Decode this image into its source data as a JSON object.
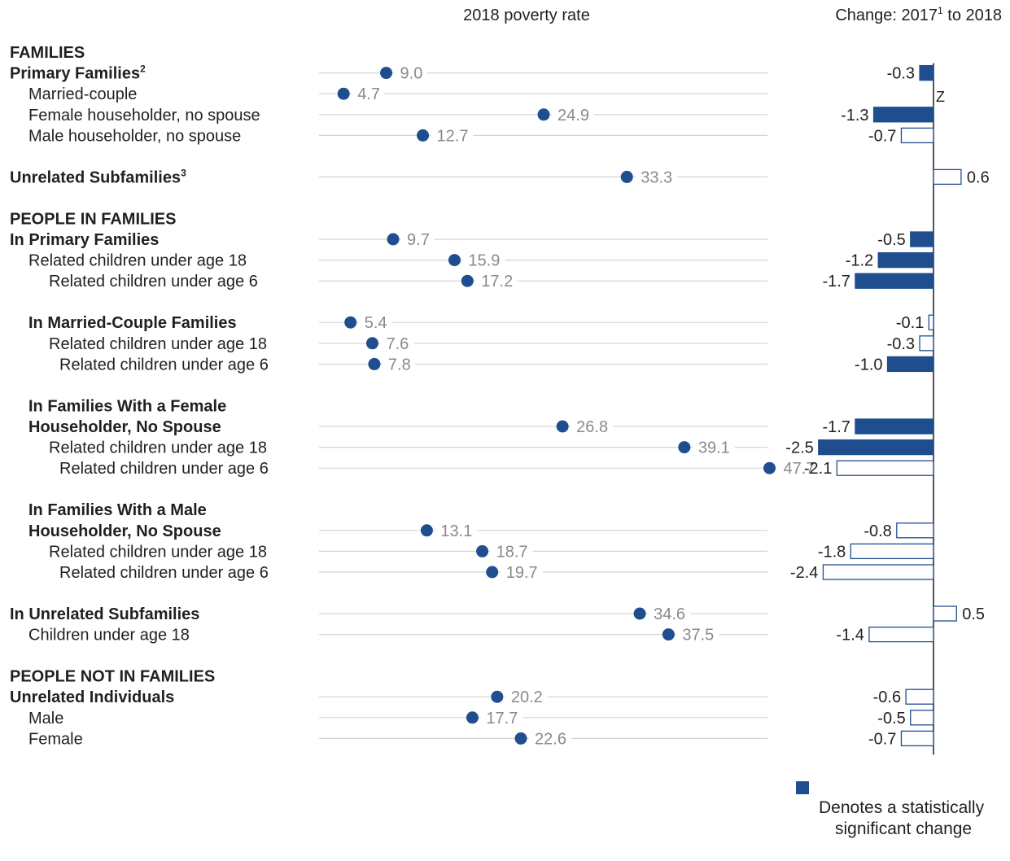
{
  "chart_data": {
    "type": "dot-and-bar",
    "header_dot": "2018 poverty rate",
    "header_change": "Change: 2017",
    "header_change_sup": "1",
    "header_change_tail": " to 2018",
    "dot_xlim": [
      0,
      60
    ],
    "change_xlim": [
      -3.0,
      1.0
    ],
    "colors": {
      "dot": "#1f4e8f",
      "significant": "#1f4e8f",
      "line": "#d4d4d4",
      "value_text": "#8a8a8a",
      "axis": "#231f20"
    },
    "zero_change_label": "Z",
    "rows": [
      {
        "label": "FAMILIES",
        "heading": true
      },
      {
        "label": "Primary Families",
        "sup": "2",
        "bold": true,
        "indent": 0,
        "rate": 9.0,
        "change": -0.3,
        "significant": true
      },
      {
        "label": "Married-couple",
        "indent": 1,
        "rate": 4.7,
        "change": 0,
        "zero": true
      },
      {
        "label": "Female householder, no spouse",
        "indent": 1,
        "rate": 24.9,
        "change": -1.3,
        "significant": true
      },
      {
        "label": "Male householder, no spouse",
        "indent": 1,
        "rate": 12.7,
        "change": -0.7,
        "significant": false
      },
      {
        "gap": true
      },
      {
        "label": "Unrelated Subfamilies",
        "sup": "3",
        "bold": true,
        "indent": 0,
        "rate": 33.3,
        "change": 0.6,
        "significant": false
      },
      {
        "gap": true
      },
      {
        "label": "PEOPLE IN FAMILIES",
        "heading": true
      },
      {
        "label": "In Primary Families",
        "bold": true,
        "indent": 0,
        "rate": 9.7,
        "change": -0.5,
        "significant": true
      },
      {
        "label": "Related children under age 18",
        "indent": 1,
        "rate": 15.9,
        "change": -1.2,
        "significant": true
      },
      {
        "label": "Related children under age 6",
        "indent": 2,
        "rate": 17.2,
        "change": -1.7,
        "significant": true
      },
      {
        "gap": true
      },
      {
        "label": "In Married-Couple Families",
        "bold": true,
        "indent": 1,
        "rate": 5.4,
        "change": -0.1,
        "significant": false
      },
      {
        "label": "Related children under age 18",
        "indent": 2,
        "rate": 7.6,
        "change": -0.3,
        "significant": false
      },
      {
        "label": "Related children under age 6",
        "indent": 3,
        "rate": 7.8,
        "change": -1.0,
        "significant": true
      },
      {
        "gap": true
      },
      {
        "label": "In Families With a Female",
        "bold": true,
        "indent": 1,
        "heading_line": true
      },
      {
        "label": "Householder, No Spouse",
        "bold": true,
        "indent": 1,
        "rate": 26.8,
        "change": -1.7,
        "significant": true
      },
      {
        "label": "Related children under age 18",
        "indent": 2,
        "rate": 39.1,
        "change": -2.5,
        "significant": true
      },
      {
        "label": "Related children under age 6",
        "indent": 3,
        "rate": 47.7,
        "change": -2.1,
        "significant": false
      },
      {
        "gap": true
      },
      {
        "label": "In Families With a Male",
        "bold": true,
        "indent": 1,
        "heading_line": true
      },
      {
        "label": "Householder, No Spouse",
        "bold": true,
        "indent": 1,
        "rate": 13.1,
        "change": -0.8,
        "significant": false
      },
      {
        "label": "Related children under age 18",
        "indent": 2,
        "rate": 18.7,
        "change": -1.8,
        "significant": false
      },
      {
        "label": "Related children under age 6",
        "indent": 3,
        "rate": 19.7,
        "change": -2.4,
        "significant": false
      },
      {
        "gap": true
      },
      {
        "label": "In Unrelated Subfamilies",
        "bold": true,
        "indent": 0,
        "rate": 34.6,
        "change": 0.5,
        "significant": false
      },
      {
        "label": "Children under age 18",
        "indent": 1,
        "rate": 37.5,
        "change": -1.4,
        "significant": false
      },
      {
        "gap": true
      },
      {
        "label": "PEOPLE NOT IN FAMILIES",
        "heading": true
      },
      {
        "label": "Unrelated Individuals",
        "bold": true,
        "indent": 0,
        "rate": 20.2,
        "change": -0.6,
        "significant": false
      },
      {
        "label": "Male",
        "indent": 1,
        "rate": 17.7,
        "change": -0.5,
        "significant": false
      },
      {
        "label": "Female",
        "indent": 1,
        "rate": 22.6,
        "change": -0.7,
        "significant": false
      }
    ],
    "legend": {
      "line1": "Denotes a statistically",
      "line2": "significant change"
    }
  }
}
